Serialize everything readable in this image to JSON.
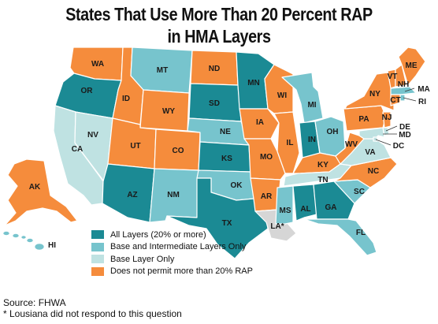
{
  "title_line1": "States That Use More Than 20 Percent RAP",
  "title_line2": "in HMA Layers",
  "colors": {
    "all": "#1b8a94",
    "base_int": "#77c4cd",
    "base": "#bfe2e2",
    "none": "#f58c3c",
    "unknown": "#d6d6d6"
  },
  "legend": [
    {
      "key": "all",
      "label": "All Layers (20% or more)"
    },
    {
      "key": "base_int",
      "label": "Base and Intermediate Layers Only"
    },
    {
      "key": "base",
      "label": "Base Layer Only"
    },
    {
      "key": "none",
      "label": "Does not permit more than 20% RAP"
    }
  ],
  "states": {
    "WA": {
      "label": "WA",
      "cat": "none"
    },
    "OR": {
      "label": "OR",
      "cat": "all"
    },
    "CA": {
      "label": "CA",
      "cat": "base"
    },
    "NV": {
      "label": "NV",
      "cat": "base"
    },
    "ID": {
      "label": "ID",
      "cat": "none"
    },
    "MT": {
      "label": "MT",
      "cat": "base_int"
    },
    "WY": {
      "label": "WY",
      "cat": "none"
    },
    "UT": {
      "label": "UT",
      "cat": "none"
    },
    "CO": {
      "label": "CO",
      "cat": "none"
    },
    "AZ": {
      "label": "AZ",
      "cat": "all"
    },
    "NM": {
      "label": "NM",
      "cat": "base_int"
    },
    "ND": {
      "label": "ND",
      "cat": "none"
    },
    "SD": {
      "label": "SD",
      "cat": "all"
    },
    "NE": {
      "label": "NE",
      "cat": "base_int"
    },
    "KS": {
      "label": "KS",
      "cat": "all"
    },
    "OK": {
      "label": "OK",
      "cat": "base_int"
    },
    "TX": {
      "label": "TX",
      "cat": "all"
    },
    "MN": {
      "label": "MN",
      "cat": "all"
    },
    "IA": {
      "label": "IA",
      "cat": "none"
    },
    "MO": {
      "label": "MO",
      "cat": "none"
    },
    "AR": {
      "label": "AR",
      "cat": "none"
    },
    "LA": {
      "label": "LA*",
      "cat": "unknown"
    },
    "WI": {
      "label": "WI",
      "cat": "none"
    },
    "IL": {
      "label": "IL",
      "cat": "none"
    },
    "MI": {
      "label": "MI",
      "cat": "base_int"
    },
    "IN": {
      "label": "IN",
      "cat": "all"
    },
    "OH": {
      "label": "OH",
      "cat": "base_int"
    },
    "KY": {
      "label": "KY",
      "cat": "none"
    },
    "TN": {
      "label": "TN",
      "cat": "base"
    },
    "MS": {
      "label": "MS",
      "cat": "base_int"
    },
    "AL": {
      "label": "AL",
      "cat": "all"
    },
    "GA": {
      "label": "GA",
      "cat": "all"
    },
    "FL": {
      "label": "FL",
      "cat": "base_int"
    },
    "SC": {
      "label": "SC",
      "cat": "base_int"
    },
    "NC": {
      "label": "NC",
      "cat": "none"
    },
    "VA": {
      "label": "VA",
      "cat": "base"
    },
    "WV": {
      "label": "WV",
      "cat": "none"
    },
    "PA": {
      "label": "PA",
      "cat": "none"
    },
    "NY": {
      "label": "NY",
      "cat": "none"
    },
    "VT": {
      "label": "VT",
      "cat": "none"
    },
    "NH": {
      "label": "NH",
      "cat": "none"
    },
    "ME": {
      "label": "ME",
      "cat": "none"
    },
    "MA": {
      "label": "MA",
      "cat": "base_int"
    },
    "RI": {
      "label": "RI",
      "cat": "base_int"
    },
    "CT": {
      "label": "CT",
      "cat": "none"
    },
    "NJ": {
      "label": "NJ",
      "cat": "none"
    },
    "DE": {
      "label": "DE",
      "cat": "base"
    },
    "MD": {
      "label": "MD",
      "cat": "base"
    },
    "DC": {
      "label": "DC",
      "cat": "base"
    },
    "AK": {
      "label": "AK",
      "cat": "none"
    },
    "HI": {
      "label": "HI",
      "cat": "base_int"
    }
  },
  "source": "Source: FHWA",
  "footnote": "* Lousiana did not respond to this question"
}
